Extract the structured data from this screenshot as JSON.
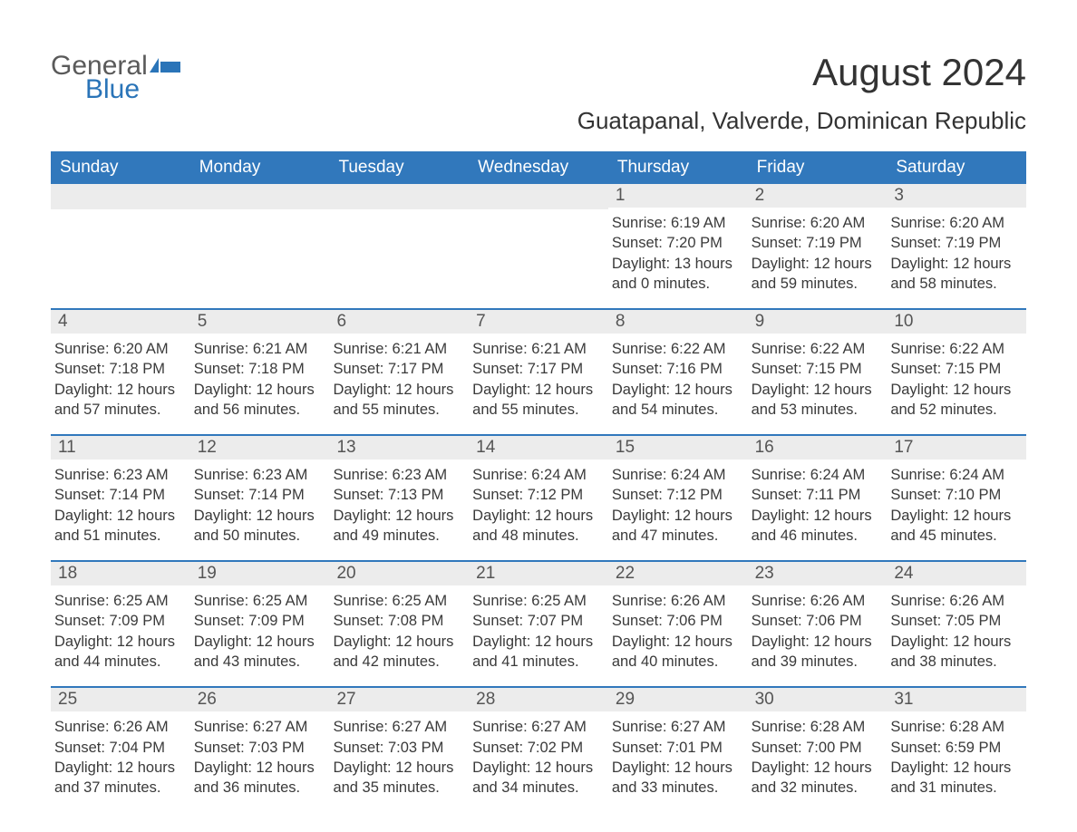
{
  "logo": {
    "word1": "General",
    "word2": "Blue",
    "icon_color": "#2a74b8"
  },
  "title": "August 2024",
  "location": "Guatapanal, Valverde, Dominican Republic",
  "colors": {
    "header_bg": "#3178bc",
    "header_text": "#ffffff",
    "daynum_bg": "#ececec",
    "row_border": "#3178bc",
    "body_text": "#3a3a3a"
  },
  "weekdays": [
    "Sunday",
    "Monday",
    "Tuesday",
    "Wednesday",
    "Thursday",
    "Friday",
    "Saturday"
  ],
  "weeks": [
    [
      null,
      null,
      null,
      null,
      {
        "n": "1",
        "sunrise": "6:19 AM",
        "sunset": "7:20 PM",
        "dl1": "13 hours",
        "dl2": "and 0 minutes."
      },
      {
        "n": "2",
        "sunrise": "6:20 AM",
        "sunset": "7:19 PM",
        "dl1": "12 hours",
        "dl2": "and 59 minutes."
      },
      {
        "n": "3",
        "sunrise": "6:20 AM",
        "sunset": "7:19 PM",
        "dl1": "12 hours",
        "dl2": "and 58 minutes."
      }
    ],
    [
      {
        "n": "4",
        "sunrise": "6:20 AM",
        "sunset": "7:18 PM",
        "dl1": "12 hours",
        "dl2": "and 57 minutes."
      },
      {
        "n": "5",
        "sunrise": "6:21 AM",
        "sunset": "7:18 PM",
        "dl1": "12 hours",
        "dl2": "and 56 minutes."
      },
      {
        "n": "6",
        "sunrise": "6:21 AM",
        "sunset": "7:17 PM",
        "dl1": "12 hours",
        "dl2": "and 55 minutes."
      },
      {
        "n": "7",
        "sunrise": "6:21 AM",
        "sunset": "7:17 PM",
        "dl1": "12 hours",
        "dl2": "and 55 minutes."
      },
      {
        "n": "8",
        "sunrise": "6:22 AM",
        "sunset": "7:16 PM",
        "dl1": "12 hours",
        "dl2": "and 54 minutes."
      },
      {
        "n": "9",
        "sunrise": "6:22 AM",
        "sunset": "7:15 PM",
        "dl1": "12 hours",
        "dl2": "and 53 minutes."
      },
      {
        "n": "10",
        "sunrise": "6:22 AM",
        "sunset": "7:15 PM",
        "dl1": "12 hours",
        "dl2": "and 52 minutes."
      }
    ],
    [
      {
        "n": "11",
        "sunrise": "6:23 AM",
        "sunset": "7:14 PM",
        "dl1": "12 hours",
        "dl2": "and 51 minutes."
      },
      {
        "n": "12",
        "sunrise": "6:23 AM",
        "sunset": "7:14 PM",
        "dl1": "12 hours",
        "dl2": "and 50 minutes."
      },
      {
        "n": "13",
        "sunrise": "6:23 AM",
        "sunset": "7:13 PM",
        "dl1": "12 hours",
        "dl2": "and 49 minutes."
      },
      {
        "n": "14",
        "sunrise": "6:24 AM",
        "sunset": "7:12 PM",
        "dl1": "12 hours",
        "dl2": "and 48 minutes."
      },
      {
        "n": "15",
        "sunrise": "6:24 AM",
        "sunset": "7:12 PM",
        "dl1": "12 hours",
        "dl2": "and 47 minutes."
      },
      {
        "n": "16",
        "sunrise": "6:24 AM",
        "sunset": "7:11 PM",
        "dl1": "12 hours",
        "dl2": "and 46 minutes."
      },
      {
        "n": "17",
        "sunrise": "6:24 AM",
        "sunset": "7:10 PM",
        "dl1": "12 hours",
        "dl2": "and 45 minutes."
      }
    ],
    [
      {
        "n": "18",
        "sunrise": "6:25 AM",
        "sunset": "7:09 PM",
        "dl1": "12 hours",
        "dl2": "and 44 minutes."
      },
      {
        "n": "19",
        "sunrise": "6:25 AM",
        "sunset": "7:09 PM",
        "dl1": "12 hours",
        "dl2": "and 43 minutes."
      },
      {
        "n": "20",
        "sunrise": "6:25 AM",
        "sunset": "7:08 PM",
        "dl1": "12 hours",
        "dl2": "and 42 minutes."
      },
      {
        "n": "21",
        "sunrise": "6:25 AM",
        "sunset": "7:07 PM",
        "dl1": "12 hours",
        "dl2": "and 41 minutes."
      },
      {
        "n": "22",
        "sunrise": "6:26 AM",
        "sunset": "7:06 PM",
        "dl1": "12 hours",
        "dl2": "and 40 minutes."
      },
      {
        "n": "23",
        "sunrise": "6:26 AM",
        "sunset": "7:06 PM",
        "dl1": "12 hours",
        "dl2": "and 39 minutes."
      },
      {
        "n": "24",
        "sunrise": "6:26 AM",
        "sunset": "7:05 PM",
        "dl1": "12 hours",
        "dl2": "and 38 minutes."
      }
    ],
    [
      {
        "n": "25",
        "sunrise": "6:26 AM",
        "sunset": "7:04 PM",
        "dl1": "12 hours",
        "dl2": "and 37 minutes."
      },
      {
        "n": "26",
        "sunrise": "6:27 AM",
        "sunset": "7:03 PM",
        "dl1": "12 hours",
        "dl2": "and 36 minutes."
      },
      {
        "n": "27",
        "sunrise": "6:27 AM",
        "sunset": "7:03 PM",
        "dl1": "12 hours",
        "dl2": "and 35 minutes."
      },
      {
        "n": "28",
        "sunrise": "6:27 AM",
        "sunset": "7:02 PM",
        "dl1": "12 hours",
        "dl2": "and 34 minutes."
      },
      {
        "n": "29",
        "sunrise": "6:27 AM",
        "sunset": "7:01 PM",
        "dl1": "12 hours",
        "dl2": "and 33 minutes."
      },
      {
        "n": "30",
        "sunrise": "6:28 AM",
        "sunset": "7:00 PM",
        "dl1": "12 hours",
        "dl2": "and 32 minutes."
      },
      {
        "n": "31",
        "sunrise": "6:28 AM",
        "sunset": "6:59 PM",
        "dl1": "12 hours",
        "dl2": "and 31 minutes."
      }
    ]
  ],
  "labels": {
    "sunrise_prefix": "Sunrise: ",
    "sunset_prefix": "Sunset: ",
    "daylight_prefix": "Daylight: "
  }
}
